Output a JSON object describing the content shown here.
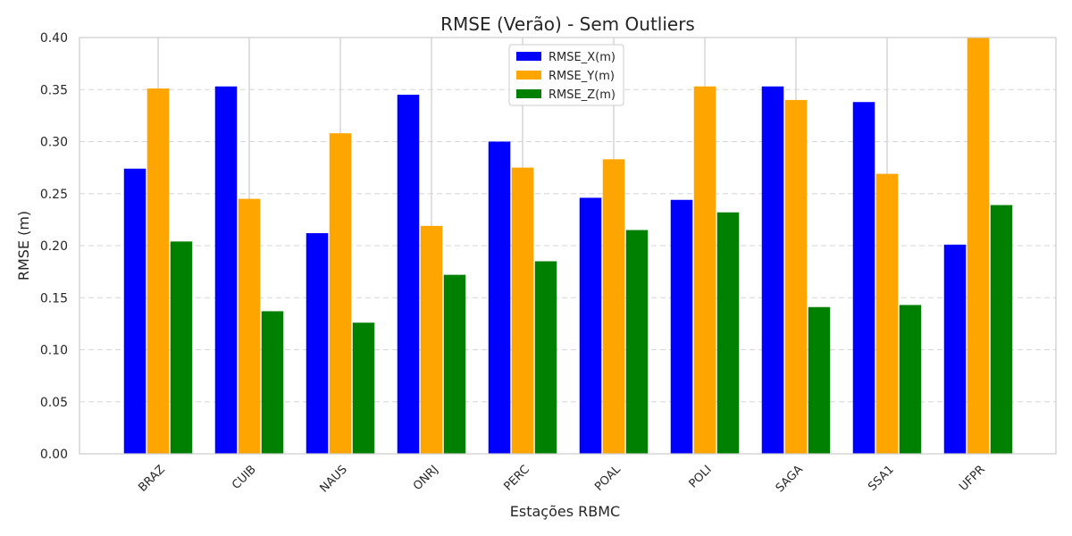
{
  "chart_data": {
    "type": "bar",
    "title": "RMSE (Verão) - Sem Outliers",
    "xlabel": "Estações RBMC",
    "ylabel": "RMSE (m)",
    "ylim": [
      0,
      0.4
    ],
    "yticks": [
      "0.00",
      "0.05",
      "0.10",
      "0.15",
      "0.20",
      "0.25",
      "0.30",
      "0.35",
      "0.40"
    ],
    "categories": [
      "BRAZ",
      "CUIB",
      "NAUS",
      "ONRJ",
      "PERC",
      "POAL",
      "POLI",
      "SAGA",
      "SSA1",
      "UFPR"
    ],
    "series": [
      {
        "name": "RMSE_X(m)",
        "color": "#0000ff",
        "values": [
          0.274,
          0.353,
          0.212,
          0.345,
          0.3,
          0.246,
          0.244,
          0.353,
          0.338,
          0.201
        ]
      },
      {
        "name": "RMSE_Y(m)",
        "color": "#ffa500",
        "values": [
          0.351,
          0.245,
          0.308,
          0.219,
          0.275,
          0.283,
          0.353,
          0.34,
          0.269,
          0.4
        ]
      },
      {
        "name": "RMSE_Z(m)",
        "color": "#008000",
        "values": [
          0.204,
          0.137,
          0.126,
          0.172,
          0.185,
          0.215,
          0.232,
          0.141,
          0.143,
          0.239
        ]
      }
    ],
    "grid": {
      "y": true,
      "y_style": "dashed",
      "x": true
    },
    "legend": "top-center"
  }
}
